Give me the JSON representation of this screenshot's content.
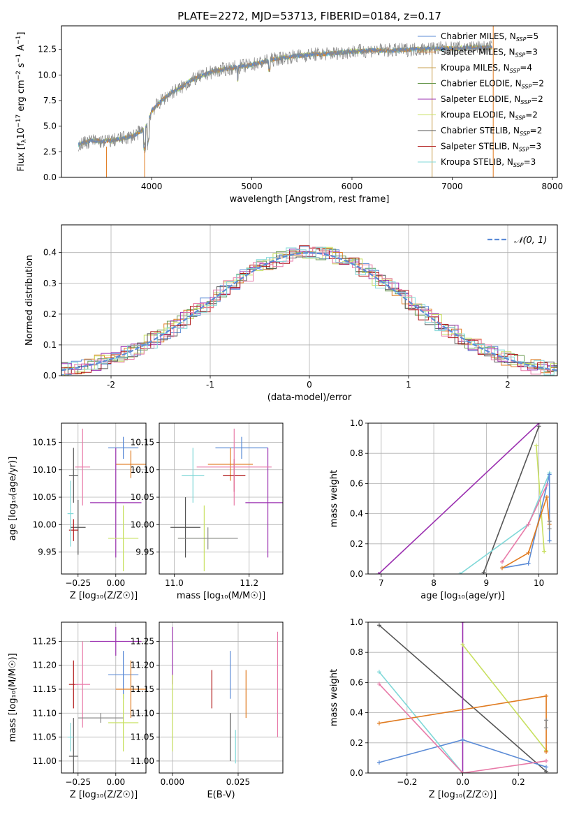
{
  "series_colors": {
    "Chabrier MILES": "#5b8bd6",
    "Salpeter MILES": "#e07b20",
    "Kroupa MILES": "#c8a050",
    "Chabrier ELODIE": "#6a9a50",
    "Salpeter ELODIE": "#9b30b0",
    "Kroupa ELODIE": "#c8e060",
    "Chabrier STELIB": "#555555",
    "Salpeter STELIB": "#b01818",
    "Kroupa STELIB": "#80d8d8",
    "pink": "#e87aa8",
    "grey": "#888888",
    "gauss": "#5b8bd6"
  },
  "chart_data": [
    {
      "id": "spectrum",
      "type": "line",
      "title": "PLATE=2272, MJD=53713, FIBERID=0184, z=0.17",
      "xlabel": "wavelength [Angstrom, rest frame]",
      "ylabel_parts": [
        "Flux [f",
        "λ",
        "10",
        "−17",
        " erg cm",
        "−2",
        " s",
        "−1",
        " A",
        "−1",
        "]"
      ],
      "xlim": [
        3100,
        8050
      ],
      "ylim": [
        0,
        14.8
      ],
      "xticks": [
        4000,
        5000,
        6000,
        7000,
        8000
      ],
      "yticks": [
        0.0,
        2.5,
        5.0,
        7.5,
        10.0,
        12.5
      ],
      "envelope_x": [
        3270,
        3400,
        3500,
        3600,
        3700,
        3800,
        3900,
        3950,
        4000,
        4100,
        4200,
        4300,
        4400,
        4500,
        4600,
        4800,
        5000,
        5200,
        5400,
        5600,
        5800,
        6000,
        6200,
        6400,
        6600,
        6800,
        7000,
        7200,
        7400
      ],
      "envelope_y": [
        3.2,
        3.6,
        3.5,
        3.6,
        3.8,
        4.0,
        4.5,
        5.0,
        6.5,
        7.5,
        8.3,
        8.8,
        9.5,
        9.9,
        10.3,
        10.7,
        11.0,
        11.5,
        11.8,
        12.0,
        12.1,
        12.3,
        12.4,
        12.4,
        12.5,
        12.6,
        12.6,
        12.7,
        12.7
      ],
      "legend": [
        {
          "label": "Chabrier MILES, N",
          "sub": "SSP",
          "tail": "=5",
          "color_key": "Chabrier MILES"
        },
        {
          "label": "Salpeter MILES, N",
          "sub": "SSP",
          "tail": "=3",
          "color_key": "Salpeter MILES"
        },
        {
          "label": "Kroupa MILES, N",
          "sub": "SSP",
          "tail": "=4",
          "color_key": "Kroupa MILES"
        },
        {
          "label": "Chabrier ELODIE, N",
          "sub": "SSP",
          "tail": "=2",
          "color_key": "Chabrier ELODIE"
        },
        {
          "label": "Salpeter ELODIE, N",
          "sub": "SSP",
          "tail": "=2",
          "color_key": "Salpeter ELODIE"
        },
        {
          "label": "Kroupa ELODIE, N",
          "sub": "SSP",
          "tail": "=2",
          "color_key": "Kroupa ELODIE"
        },
        {
          "label": "Chabrier STELIB, N",
          "sub": "SSP",
          "tail": "=2",
          "color_key": "Chabrier STELIB"
        },
        {
          "label": "Salpeter STELIB, N",
          "sub": "SSP",
          "tail": "=3",
          "color_key": "Salpeter STELIB"
        },
        {
          "label": "Kroupa STELIB, N",
          "sub": "SSP",
          "tail": "=3",
          "color_key": "Kroupa STELIB"
        }
      ],
      "legend_placement": "top-right"
    },
    {
      "id": "residuals",
      "type": "step-histogram",
      "xlabel": "(data-model)/error",
      "ylabel": "Normed distribution",
      "xlim": [
        -2.5,
        2.5
      ],
      "ylim": [
        0,
        0.49
      ],
      "xticks": [
        -2,
        -1,
        0,
        1,
        2
      ],
      "yticks": [
        0.0,
        0.1,
        0.2,
        0.3,
        0.4
      ],
      "grid": true,
      "gaussian_label": "𝒩(0, 1)",
      "legend_placement": "top-right"
    },
    {
      "id": "age_vs_Z",
      "type": "errorbar",
      "xlabel": "Z [log₁₀(Z/Z☉)]",
      "ylabel": "age  [log₁₀(age/yr)]",
      "xlim": [
        -0.36,
        0.2
      ],
      "ylim": [
        9.91,
        10.185
      ],
      "xticks": [
        -0.25,
        0.0
      ],
      "xtick_labels": [
        "−0.25",
        "0.00"
      ],
      "yticks": [
        9.95,
        10.0,
        10.05,
        10.1,
        10.15
      ],
      "ytick_labels": [
        "9.95",
        "10.00",
        "10.05",
        "10.10",
        "10.15"
      ],
      "grid": true,
      "points": [
        {
          "x": 0.05,
          "xerr": 0.1,
          "y": 10.14,
          "yerr": 0.02,
          "c": "Chabrier MILES"
        },
        {
          "x": 0.1,
          "xerr": 0.1,
          "y": 10.11,
          "yerr": 0.025,
          "c": "Salpeter MILES"
        },
        {
          "x": 0.0,
          "xerr": 0.17,
          "y": 10.04,
          "yerr": 0.1,
          "c": "Salpeter ELODIE"
        },
        {
          "x": 0.05,
          "xerr": 0.1,
          "y": 9.975,
          "yerr": 0.06,
          "c": "Kroupa ELODIE"
        },
        {
          "x": -0.25,
          "xerr": 0.05,
          "y": 9.995,
          "yerr": 0.05,
          "c": "Chabrier STELIB"
        },
        {
          "x": -0.28,
          "xerr": 0.03,
          "y": 10.09,
          "yerr": 0.05,
          "c": "Chabrier STELIB"
        },
        {
          "x": -0.28,
          "xerr": 0.03,
          "y": 9.99,
          "yerr": 0.02,
          "c": "Salpeter STELIB"
        },
        {
          "x": -0.22,
          "xerr": 0.05,
          "y": 10.105,
          "yerr": 0.07,
          "c": "pink"
        },
        {
          "x": -0.3,
          "xerr": 0.02,
          "y": 10.02,
          "yerr": 0.06,
          "c": "Kroupa STELIB"
        }
      ]
    },
    {
      "id": "age_vs_mass",
      "type": "errorbar",
      "xlabel": "mass [log₁₀(M/M☉)]",
      "ylabel": "",
      "xlim": [
        10.96,
        11.29
      ],
      "ylim": [
        9.91,
        10.185
      ],
      "xticks": [
        11.0,
        11.2
      ],
      "xtick_labels": [
        "11.0",
        "11.2"
      ],
      "yticks": [
        9.95,
        10.0,
        10.05,
        10.1,
        10.15
      ],
      "ytick_labels": [
        "9.95",
        "10.00",
        "10.05",
        "10.10",
        "10.15"
      ],
      "grid": true,
      "points": [
        {
          "x": 11.18,
          "xerr": 0.07,
          "y": 10.14,
          "yerr": 0.02,
          "c": "Chabrier MILES"
        },
        {
          "x": 11.15,
          "xerr": 0.06,
          "y": 10.11,
          "yerr": 0.03,
          "c": "Salpeter MILES"
        },
        {
          "x": 11.25,
          "xerr": 0.06,
          "y": 10.04,
          "yerr": 0.1,
          "c": "Salpeter ELODIE"
        },
        {
          "x": 11.08,
          "xerr": 0.07,
          "y": 9.975,
          "yerr": 0.06,
          "c": "Kroupa ELODIE"
        },
        {
          "x": 11.03,
          "xerr": 0.04,
          "y": 9.995,
          "yerr": 0.055,
          "c": "Chabrier STELIB"
        },
        {
          "x": 11.16,
          "xerr": 0.03,
          "y": 10.09,
          "yerr": 0.03,
          "c": "Salpeter STELIB"
        },
        {
          "x": 11.16,
          "xerr": 0.1,
          "y": 10.105,
          "yerr": 0.07,
          "c": "pink"
        },
        {
          "x": 11.05,
          "xerr": 0.03,
          "y": 10.09,
          "yerr": 0.05,
          "c": "Kroupa STELIB"
        },
        {
          "x": 11.09,
          "xerr": 0.08,
          "y": 9.975,
          "yerr": 0.02,
          "c": "grey"
        }
      ]
    },
    {
      "id": "massweight_vs_age",
      "type": "line",
      "xlabel": "age  [log₁₀(age/yr)]",
      "ylabel": "mass weight",
      "xlim": [
        6.75,
        10.35
      ],
      "ylim": [
        0,
        1.0
      ],
      "xticks": [
        7,
        8,
        9,
        10
      ],
      "yticks": [
        0.0,
        0.2,
        0.4,
        0.6,
        0.8,
        1.0
      ],
      "ytick_labels": [
        "0.0",
        "0.2",
        "0.4",
        "0.6",
        "0.8",
        "1.0"
      ],
      "grid": true,
      "series": [
        {
          "c": "Salpeter ELODIE",
          "x": [
            6.95,
            10.0
          ],
          "y": [
            0.0,
            1.0
          ]
        },
        {
          "c": "Chabrier STELIB",
          "x": [
            8.95,
            10.0
          ],
          "y": [
            0.01,
            0.98
          ]
        },
        {
          "c": "Kroupa ELODIE",
          "x": [
            9.95,
            10.1
          ],
          "y": [
            0.85,
            0.15
          ]
        },
        {
          "c": "Kroupa STELIB",
          "x": [
            8.5,
            9.8,
            10.2
          ],
          "y": [
            0.0,
            0.33,
            0.67
          ]
        },
        {
          "c": "Chabrier MILES",
          "x": [
            9.3,
            9.8,
            10.2,
            10.2
          ],
          "y": [
            0.04,
            0.07,
            0.66,
            0.22
          ]
        },
        {
          "c": "Salpeter MILES",
          "x": [
            9.3,
            9.8,
            10.15,
            10.2
          ],
          "y": [
            0.04,
            0.14,
            0.51,
            0.33
          ]
        },
        {
          "c": "pink",
          "x": [
            9.3,
            9.8,
            10.15
          ],
          "y": [
            0.08,
            0.33,
            0.59
          ]
        },
        {
          "c": "grey",
          "x": [
            10.2,
            10.2
          ],
          "y": [
            0.35,
            0.3
          ]
        }
      ]
    },
    {
      "id": "mass_vs_Z",
      "type": "errorbar",
      "xlabel": "Z [log₁₀(Z/Z☉)]",
      "ylabel": "mass [log₁₀(M/M☉)]",
      "xlim": [
        -0.36,
        0.2
      ],
      "ylim": [
        10.975,
        11.29
      ],
      "xticks": [
        -0.25,
        0.0
      ],
      "xtick_labels": [
        "−0.25",
        "0.00"
      ],
      "yticks": [
        11.0,
        11.05,
        11.1,
        11.15,
        11.2,
        11.25
      ],
      "ytick_labels": [
        "11.00",
        "11.05",
        "11.10",
        "11.15",
        "11.20",
        "11.25"
      ],
      "grid": true,
      "points": [
        {
          "x": 0.05,
          "xerr": 0.1,
          "y": 11.18,
          "yerr": 0.05,
          "c": "Chabrier MILES"
        },
        {
          "x": 0.1,
          "xerr": 0.1,
          "y": 11.15,
          "yerr": 0.06,
          "c": "Salpeter MILES"
        },
        {
          "x": 0.0,
          "xerr": 0.17,
          "y": 11.25,
          "yerr": 0.03,
          "c": "Salpeter ELODIE"
        },
        {
          "x": 0.05,
          "xerr": 0.1,
          "y": 11.08,
          "yerr": 0.06,
          "c": "Kroupa ELODIE"
        },
        {
          "x": -0.28,
          "xerr": 0.03,
          "y": 11.01,
          "yerr": 0.08,
          "c": "Chabrier STELIB"
        },
        {
          "x": -0.28,
          "xerr": 0.03,
          "y": 11.16,
          "yerr": 0.05,
          "c": "Salpeter STELIB"
        },
        {
          "x": -0.22,
          "xerr": 0.05,
          "y": 11.16,
          "yerr": 0.09,
          "c": "pink"
        },
        {
          "x": -0.3,
          "xerr": 0.02,
          "y": 11.05,
          "yerr": 0.03,
          "c": "Kroupa STELIB"
        },
        {
          "x": -0.1,
          "xerr": 0.15,
          "y": 11.09,
          "yerr": 0.01,
          "c": "grey"
        }
      ]
    },
    {
      "id": "mass_vs_ebv",
      "type": "errorbar",
      "xlabel": "E(B-V)",
      "ylabel": "",
      "xlim": [
        -0.005,
        0.042
      ],
      "ylim": [
        10.975,
        11.29
      ],
      "xticks": [
        0.0,
        0.025
      ],
      "xtick_labels": [
        "0.000",
        "0.025"
      ],
      "yticks": [
        11.0,
        11.05,
        11.1,
        11.15,
        11.2,
        11.25
      ],
      "ytick_labels": [
        "11.00",
        "11.05",
        "11.10",
        "11.15",
        "11.20",
        "11.25"
      ],
      "grid": true,
      "points": [
        {
          "x": 0.0,
          "xerr": 0,
          "y": 11.22,
          "yerr": 0.06,
          "c": "Salpeter ELODIE"
        },
        {
          "x": 0.0,
          "xerr": 0,
          "y": 11.1,
          "yerr": 0.08,
          "c": "Kroupa ELODIE"
        },
        {
          "x": 0.022,
          "xerr": 0,
          "y": 11.18,
          "yerr": 0.05,
          "c": "Chabrier MILES"
        },
        {
          "x": 0.028,
          "xerr": 0,
          "y": 11.14,
          "yerr": 0.05,
          "c": "Salpeter MILES"
        },
        {
          "x": 0.022,
          "xerr": 0,
          "y": 11.05,
          "yerr": 0.05,
          "c": "Chabrier STELIB"
        },
        {
          "x": 0.024,
          "xerr": 0,
          "y": 11.03,
          "yerr": 0.035,
          "c": "Kroupa STELIB"
        },
        {
          "x": 0.015,
          "xerr": 0,
          "y": 11.15,
          "yerr": 0.04,
          "c": "Salpeter STELIB"
        },
        {
          "x": 0.04,
          "xerr": 0,
          "y": 11.16,
          "yerr": 0.11,
          "c": "pink"
        }
      ]
    },
    {
      "id": "massweight_vs_Z",
      "type": "line",
      "xlabel": "Z [log₁₀(Z/Z☉)]",
      "ylabel": "mass weight",
      "xlim": [
        -0.34,
        0.34
      ],
      "ylim": [
        0,
        1.0
      ],
      "xticks": [
        -0.2,
        0.0,
        0.2
      ],
      "xtick_labels": [
        "−0.2",
        "0.0",
        "0.2"
      ],
      "yticks": [
        0.0,
        0.2,
        0.4,
        0.6,
        0.8,
        1.0
      ],
      "ytick_labels": [
        "0.0",
        "0.2",
        "0.4",
        "0.6",
        "0.8",
        "1.0"
      ],
      "grid": true,
      "series": [
        {
          "c": "Chabrier STELIB",
          "x": [
            -0.3,
            0.3
          ],
          "y": [
            0.98,
            0.01
          ]
        },
        {
          "c": "Salpeter ELODIE",
          "x": [
            0.0,
            0.0
          ],
          "y": [
            0.0,
            1.0
          ]
        },
        {
          "c": "Kroupa ELODIE",
          "x": [
            0.0,
            0.3
          ],
          "y": [
            0.85,
            0.15
          ]
        },
        {
          "c": "Kroupa STELIB",
          "x": [
            -0.3,
            0.0
          ],
          "y": [
            0.67,
            0.0
          ]
        },
        {
          "c": "Chabrier MILES",
          "x": [
            -0.3,
            0.0,
            0.3
          ],
          "y": [
            0.07,
            0.22,
            0.04
          ]
        },
        {
          "c": "Salpeter MILES",
          "x": [
            -0.3,
            0.3,
            0.3
          ],
          "y": [
            0.33,
            0.51,
            0.14
          ]
        },
        {
          "c": "pink",
          "x": [
            -0.3,
            0.0,
            0.3
          ],
          "y": [
            0.59,
            0.0,
            0.08
          ]
        },
        {
          "c": "grey",
          "x": [
            0.3,
            0.3
          ],
          "y": [
            0.35,
            0.3
          ]
        }
      ]
    }
  ]
}
